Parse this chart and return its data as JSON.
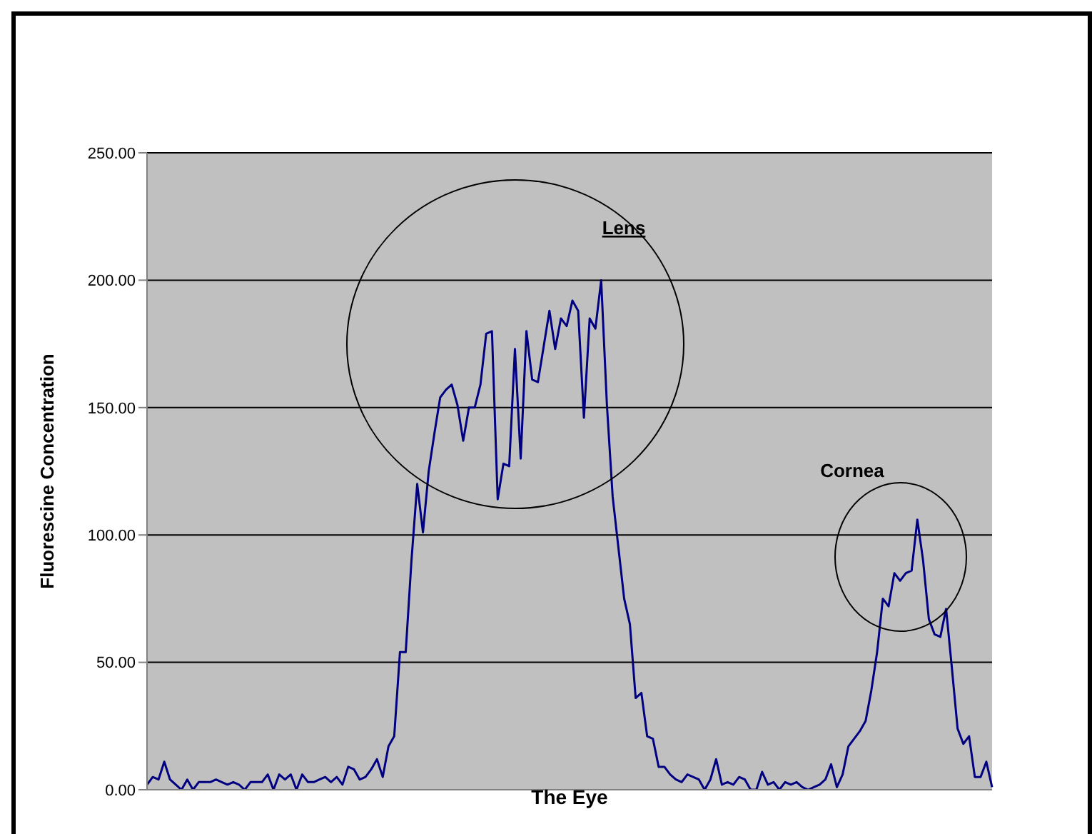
{
  "chart_data": {
    "type": "line",
    "xlabel": "The Eye",
    "ylabel": "Fluorescine Concentration",
    "annotations": [
      "Lens",
      "Cornea"
    ],
    "categories": [
      null,
      null,
      null,
      null,
      null,
      null,
      null,
      null,
      null,
      null,
      null,
      null,
      null,
      null,
      null,
      null,
      null,
      null,
      null,
      null,
      null,
      null,
      null,
      null,
      null,
      null,
      null,
      null,
      null,
      null,
      null,
      null,
      null,
      null,
      null,
      null,
      null,
      null,
      null,
      null,
      null,
      null,
      null,
      null,
      null,
      null,
      null,
      null,
      null,
      null,
      null,
      null,
      null,
      null,
      null,
      null,
      null,
      null,
      null,
      null,
      null,
      null,
      null,
      null,
      null,
      null,
      null,
      null,
      null,
      null,
      null,
      null,
      null,
      null,
      null,
      null,
      null,
      null,
      null,
      null,
      null,
      null,
      null,
      null,
      null,
      null,
      null,
      null,
      null,
      null,
      null,
      null,
      null,
      null,
      null,
      null,
      null,
      null,
      null,
      null,
      null,
      null,
      null,
      null,
      null,
      null,
      null,
      null,
      null,
      null,
      null,
      null,
      null,
      null,
      null,
      null,
      null,
      null,
      null,
      null,
      null,
      null,
      null,
      null,
      null,
      null,
      null,
      null,
      null,
      null,
      null,
      null,
      null,
      null,
      null,
      null,
      null,
      null,
      null,
      null,
      null,
      null,
      null,
      null,
      null,
      null,
      null,
      null
    ],
    "series": [
      {
        "color": "#000080",
        "values": [
          2,
          5,
          4,
          11,
          4,
          2,
          0,
          4,
          0,
          3,
          3,
          3,
          4,
          3,
          2,
          3,
          2,
          0,
          3,
          3,
          3,
          6,
          0,
          6,
          4,
          6,
          0,
          6,
          3,
          3,
          4,
          5,
          3,
          5,
          2,
          9,
          8,
          4,
          5,
          8,
          12,
          5,
          17,
          21,
          54,
          54,
          90,
          120,
          101,
          125,
          140,
          154,
          157,
          159,
          151,
          137,
          150,
          150,
          159,
          179,
          180,
          114,
          128,
          127,
          173,
          130,
          180,
          161,
          160,
          174,
          188,
          173,
          185,
          182,
          192,
          188,
          146,
          185,
          181,
          200,
          151,
          115,
          95,
          75,
          65,
          36,
          38,
          21,
          20,
          9,
          9,
          6,
          4,
          3,
          6,
          5,
          4,
          0,
          4,
          12,
          2,
          3,
          2,
          5,
          4,
          0,
          0,
          7,
          2,
          3,
          0,
          3,
          2,
          3,
          1,
          0,
          1,
          2,
          4,
          10,
          1,
          6,
          17,
          20,
          23,
          27,
          39,
          54,
          75,
          72,
          85,
          82,
          85,
          86,
          106,
          90,
          67,
          61,
          60,
          71,
          48,
          24,
          18,
          21,
          5,
          5,
          11,
          1
        ]
      }
    ],
    "ylim": [
      0,
      250
    ],
    "yticks": [
      {
        "value": 0,
        "label": "0.00"
      },
      {
        "value": 50,
        "label": "50.00"
      },
      {
        "value": 100,
        "label": "100.00"
      },
      {
        "value": 150,
        "label": "150.00"
      },
      {
        "value": 200,
        "label": "200.00"
      },
      {
        "value": 250,
        "label": "250.00"
      }
    ],
    "grid": "y"
  }
}
